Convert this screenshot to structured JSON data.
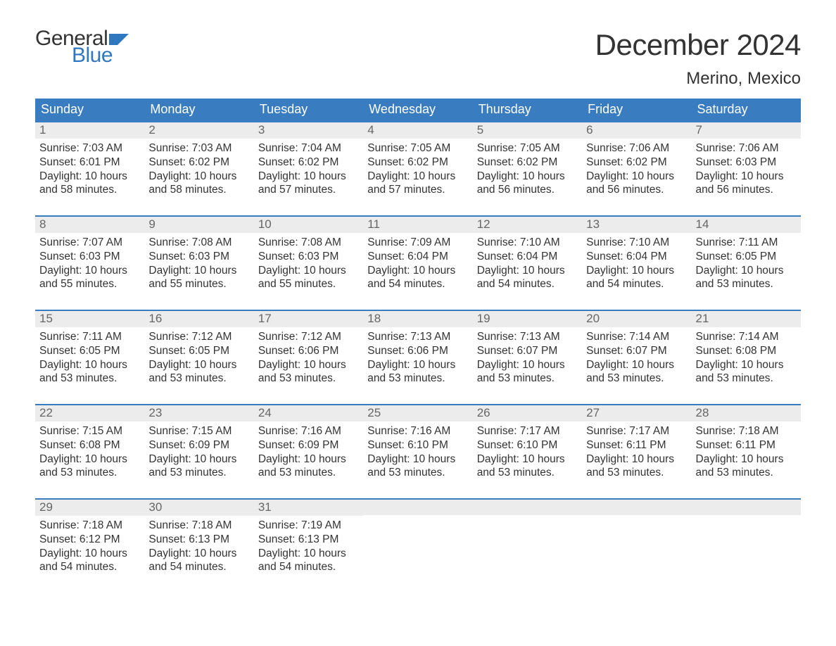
{
  "logo": {
    "text1": "General",
    "text2": "Blue",
    "flag_color": "#2f78bf"
  },
  "title": "December 2024",
  "subtitle": "Merino, Mexico",
  "colors": {
    "header_bg": "#3a7cc0",
    "header_text": "#ffffff",
    "daynum_bg": "#ececec",
    "daynum_text": "#666666",
    "body_text": "#333333",
    "week_border": "#3a7cc0",
    "page_bg": "#ffffff",
    "logo_blue": "#2f78bf"
  },
  "day_headers": [
    "Sunday",
    "Monday",
    "Tuesday",
    "Wednesday",
    "Thursday",
    "Friday",
    "Saturday"
  ],
  "weeks": [
    [
      {
        "n": "1",
        "sunrise": "Sunrise: 7:03 AM",
        "sunset": "Sunset: 6:01 PM",
        "dl1": "Daylight: 10 hours",
        "dl2": "and 58 minutes."
      },
      {
        "n": "2",
        "sunrise": "Sunrise: 7:03 AM",
        "sunset": "Sunset: 6:02 PM",
        "dl1": "Daylight: 10 hours",
        "dl2": "and 58 minutes."
      },
      {
        "n": "3",
        "sunrise": "Sunrise: 7:04 AM",
        "sunset": "Sunset: 6:02 PM",
        "dl1": "Daylight: 10 hours",
        "dl2": "and 57 minutes."
      },
      {
        "n": "4",
        "sunrise": "Sunrise: 7:05 AM",
        "sunset": "Sunset: 6:02 PM",
        "dl1": "Daylight: 10 hours",
        "dl2": "and 57 minutes."
      },
      {
        "n": "5",
        "sunrise": "Sunrise: 7:05 AM",
        "sunset": "Sunset: 6:02 PM",
        "dl1": "Daylight: 10 hours",
        "dl2": "and 56 minutes."
      },
      {
        "n": "6",
        "sunrise": "Sunrise: 7:06 AM",
        "sunset": "Sunset: 6:02 PM",
        "dl1": "Daylight: 10 hours",
        "dl2": "and 56 minutes."
      },
      {
        "n": "7",
        "sunrise": "Sunrise: 7:06 AM",
        "sunset": "Sunset: 6:03 PM",
        "dl1": "Daylight: 10 hours",
        "dl2": "and 56 minutes."
      }
    ],
    [
      {
        "n": "8",
        "sunrise": "Sunrise: 7:07 AM",
        "sunset": "Sunset: 6:03 PM",
        "dl1": "Daylight: 10 hours",
        "dl2": "and 55 minutes."
      },
      {
        "n": "9",
        "sunrise": "Sunrise: 7:08 AM",
        "sunset": "Sunset: 6:03 PM",
        "dl1": "Daylight: 10 hours",
        "dl2": "and 55 minutes."
      },
      {
        "n": "10",
        "sunrise": "Sunrise: 7:08 AM",
        "sunset": "Sunset: 6:03 PM",
        "dl1": "Daylight: 10 hours",
        "dl2": "and 55 minutes."
      },
      {
        "n": "11",
        "sunrise": "Sunrise: 7:09 AM",
        "sunset": "Sunset: 6:04 PM",
        "dl1": "Daylight: 10 hours",
        "dl2": "and 54 minutes."
      },
      {
        "n": "12",
        "sunrise": "Sunrise: 7:10 AM",
        "sunset": "Sunset: 6:04 PM",
        "dl1": "Daylight: 10 hours",
        "dl2": "and 54 minutes."
      },
      {
        "n": "13",
        "sunrise": "Sunrise: 7:10 AM",
        "sunset": "Sunset: 6:04 PM",
        "dl1": "Daylight: 10 hours",
        "dl2": "and 54 minutes."
      },
      {
        "n": "14",
        "sunrise": "Sunrise: 7:11 AM",
        "sunset": "Sunset: 6:05 PM",
        "dl1": "Daylight: 10 hours",
        "dl2": "and 53 minutes."
      }
    ],
    [
      {
        "n": "15",
        "sunrise": "Sunrise: 7:11 AM",
        "sunset": "Sunset: 6:05 PM",
        "dl1": "Daylight: 10 hours",
        "dl2": "and 53 minutes."
      },
      {
        "n": "16",
        "sunrise": "Sunrise: 7:12 AM",
        "sunset": "Sunset: 6:05 PM",
        "dl1": "Daylight: 10 hours",
        "dl2": "and 53 minutes."
      },
      {
        "n": "17",
        "sunrise": "Sunrise: 7:12 AM",
        "sunset": "Sunset: 6:06 PM",
        "dl1": "Daylight: 10 hours",
        "dl2": "and 53 minutes."
      },
      {
        "n": "18",
        "sunrise": "Sunrise: 7:13 AM",
        "sunset": "Sunset: 6:06 PM",
        "dl1": "Daylight: 10 hours",
        "dl2": "and 53 minutes."
      },
      {
        "n": "19",
        "sunrise": "Sunrise: 7:13 AM",
        "sunset": "Sunset: 6:07 PM",
        "dl1": "Daylight: 10 hours",
        "dl2": "and 53 minutes."
      },
      {
        "n": "20",
        "sunrise": "Sunrise: 7:14 AM",
        "sunset": "Sunset: 6:07 PM",
        "dl1": "Daylight: 10 hours",
        "dl2": "and 53 minutes."
      },
      {
        "n": "21",
        "sunrise": "Sunrise: 7:14 AM",
        "sunset": "Sunset: 6:08 PM",
        "dl1": "Daylight: 10 hours",
        "dl2": "and 53 minutes."
      }
    ],
    [
      {
        "n": "22",
        "sunrise": "Sunrise: 7:15 AM",
        "sunset": "Sunset: 6:08 PM",
        "dl1": "Daylight: 10 hours",
        "dl2": "and 53 minutes."
      },
      {
        "n": "23",
        "sunrise": "Sunrise: 7:15 AM",
        "sunset": "Sunset: 6:09 PM",
        "dl1": "Daylight: 10 hours",
        "dl2": "and 53 minutes."
      },
      {
        "n": "24",
        "sunrise": "Sunrise: 7:16 AM",
        "sunset": "Sunset: 6:09 PM",
        "dl1": "Daylight: 10 hours",
        "dl2": "and 53 minutes."
      },
      {
        "n": "25",
        "sunrise": "Sunrise: 7:16 AM",
        "sunset": "Sunset: 6:10 PM",
        "dl1": "Daylight: 10 hours",
        "dl2": "and 53 minutes."
      },
      {
        "n": "26",
        "sunrise": "Sunrise: 7:17 AM",
        "sunset": "Sunset: 6:10 PM",
        "dl1": "Daylight: 10 hours",
        "dl2": "and 53 minutes."
      },
      {
        "n": "27",
        "sunrise": "Sunrise: 7:17 AM",
        "sunset": "Sunset: 6:11 PM",
        "dl1": "Daylight: 10 hours",
        "dl2": "and 53 minutes."
      },
      {
        "n": "28",
        "sunrise": "Sunrise: 7:18 AM",
        "sunset": "Sunset: 6:11 PM",
        "dl1": "Daylight: 10 hours",
        "dl2": "and 53 minutes."
      }
    ],
    [
      {
        "n": "29",
        "sunrise": "Sunrise: 7:18 AM",
        "sunset": "Sunset: 6:12 PM",
        "dl1": "Daylight: 10 hours",
        "dl2": "and 54 minutes."
      },
      {
        "n": "30",
        "sunrise": "Sunrise: 7:18 AM",
        "sunset": "Sunset: 6:13 PM",
        "dl1": "Daylight: 10 hours",
        "dl2": "and 54 minutes."
      },
      {
        "n": "31",
        "sunrise": "Sunrise: 7:19 AM",
        "sunset": "Sunset: 6:13 PM",
        "dl1": "Daylight: 10 hours",
        "dl2": "and 54 minutes."
      },
      {
        "empty": true
      },
      {
        "empty": true
      },
      {
        "empty": true
      },
      {
        "empty": true
      }
    ]
  ]
}
